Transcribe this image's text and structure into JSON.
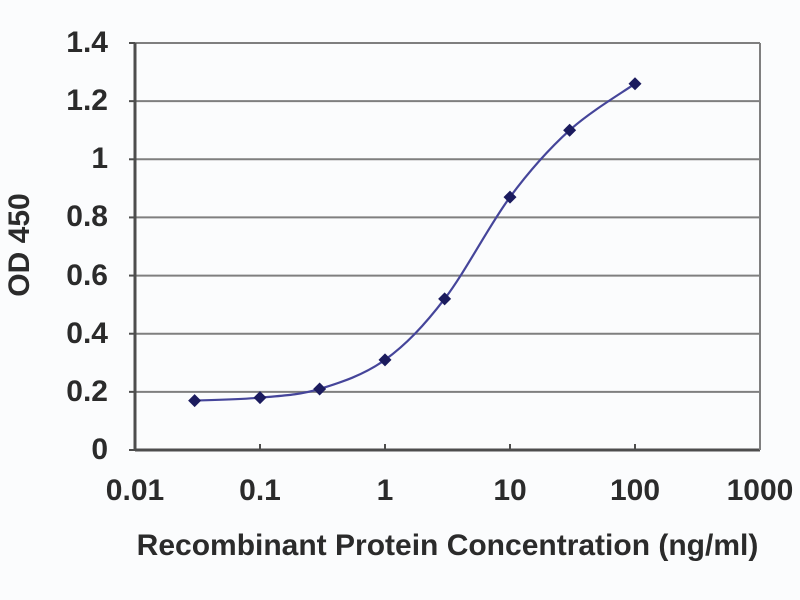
{
  "figure": {
    "background": "#fbfcfd"
  },
  "chart_data": {
    "type": "line",
    "title": "",
    "xlabel": "Recombinant Protein Concentration (ng/ml)",
    "ylabel": "OD 450",
    "x_scale": "log",
    "x": [
      0.03,
      0.1,
      0.3,
      1,
      3,
      10,
      30,
      100
    ],
    "y": [
      0.17,
      0.18,
      0.21,
      0.31,
      0.52,
      0.87,
      1.1,
      1.26
    ],
    "xlim": [
      0.01,
      1000
    ],
    "ylim": [
      0,
      1.4
    ],
    "x_ticks": [
      "0.01",
      "0.1",
      "1",
      "10",
      "100",
      "1000"
    ],
    "y_ticks": [
      "0",
      "0.2",
      "0.4",
      "0.6",
      "0.8",
      "1",
      "1.2",
      "1.4"
    ],
    "grid": "horizontal-only",
    "legend_position": "none",
    "marker_shape": "diamond",
    "line_smoothing": "smoothed",
    "colors": {
      "line": "#45459a",
      "marker": "#1b1b5e",
      "grid": "#7f7f7f",
      "axis": "#4d4d4d",
      "text": "#2b2b2b"
    }
  }
}
